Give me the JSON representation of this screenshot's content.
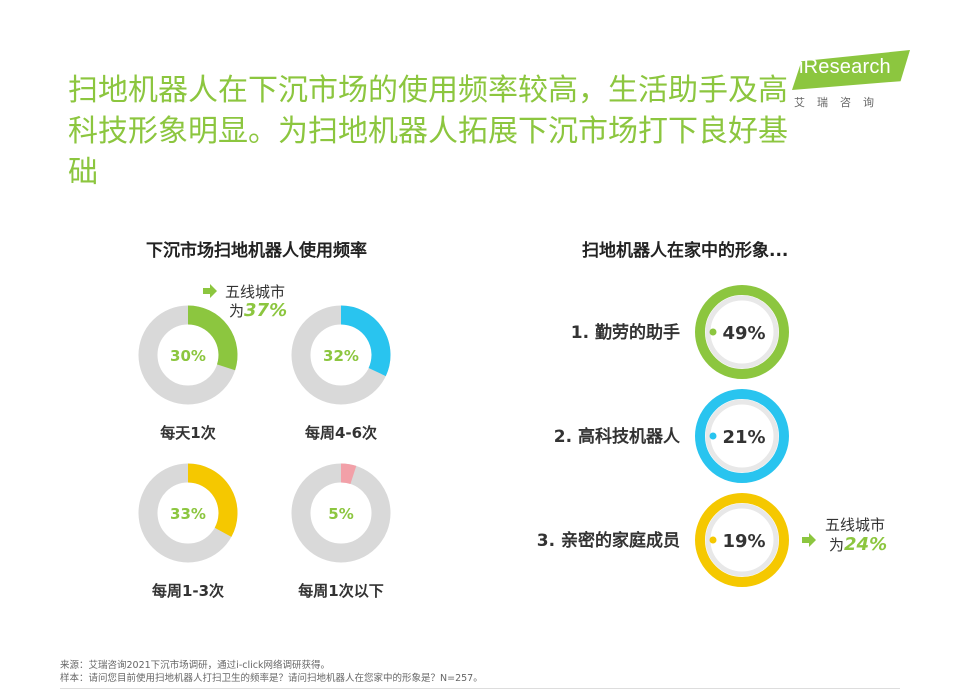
{
  "title": "扫地机器人在下沉市场的使用频率较高，生活助手及高科技形象明显。为扫地机器人拓展下沉市场打下良好基础",
  "logo": {
    "brand": "iResearch",
    "sub": "艾瑞咨询"
  },
  "colors": {
    "green": "#8cc63f",
    "cyan": "#29c4ef",
    "yellow": "#f5c800",
    "pink": "#f2a0a8",
    "gray": "#d9d9d9"
  },
  "chart_data": [
    {
      "type": "pie",
      "title": "下沉市场扫地机器人使用频率",
      "categories": [
        "每天1次",
        "每周4-6次",
        "每周1-3次",
        "每周1次以下"
      ],
      "values": [
        30,
        32,
        33,
        5
      ],
      "value_labels": [
        "30%",
        "32%",
        "33%",
        "5%"
      ],
      "annotations": [
        {
          "target": "每天1次",
          "line1": "五线城市",
          "line2_prefix": "为",
          "line2_value": "37%"
        }
      ]
    },
    {
      "type": "pie",
      "title": "扫地机器人在家中的形象...",
      "categories": [
        "1. 勤劳的助手",
        "2. 高科技机器人",
        "3. 亲密的家庭成员"
      ],
      "values": [
        49,
        21,
        19
      ],
      "value_labels": [
        "49%",
        "21%",
        "19%"
      ],
      "annotations": [
        {
          "target": "3. 亲密的家庭成员",
          "line1": "五线城市",
          "line2_prefix": "为",
          "line2_value": "24%"
        }
      ]
    }
  ],
  "footnote": {
    "source": "来源：艾瑞咨询2021下沉市场调研，通过i-click网络调研获得。",
    "sample": "样本：请问您目前使用扫地机器人打扫卫生的频率是？请问扫地机器人在您家中的形象是？N=257。"
  }
}
